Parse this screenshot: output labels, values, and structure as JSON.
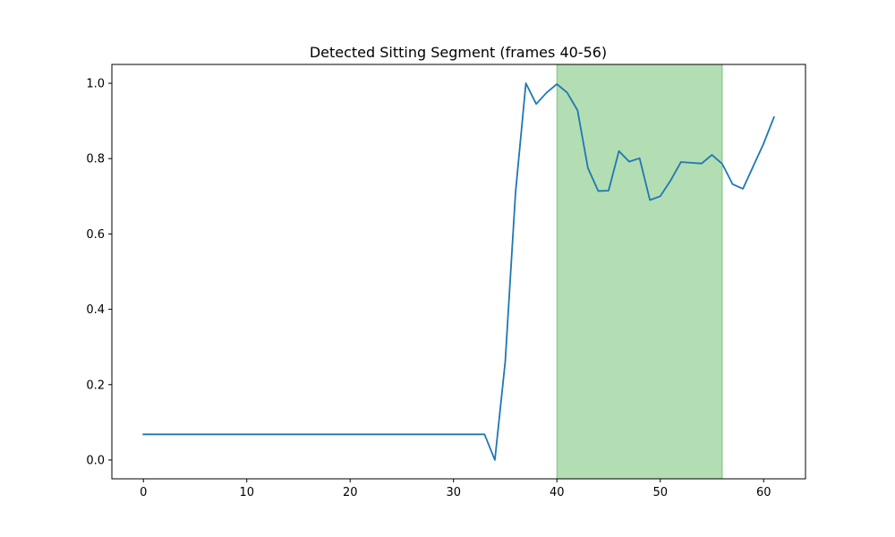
{
  "chart_data": {
    "type": "line",
    "title": "Detected Sitting Segment (frames 40-56)",
    "xlabel": "",
    "ylabel": "",
    "xlim": [
      -3.05,
      64.05
    ],
    "ylim": [
      -0.05,
      1.05
    ],
    "xticks": [
      0,
      10,
      20,
      30,
      40,
      50,
      60
    ],
    "yticks": [
      0.0,
      0.2,
      0.4,
      0.6,
      0.8,
      1.0
    ],
    "xtick_labels": [
      "0",
      "10",
      "20",
      "30",
      "40",
      "50",
      "60"
    ],
    "ytick_labels": [
      "0.0",
      "0.2",
      "0.4",
      "0.6",
      "0.8",
      "1.0"
    ],
    "grid": false,
    "line_color": "#1f77b4",
    "highlight": {
      "x_start": 40,
      "x_end": 56,
      "color": "#2ca02c",
      "opacity": 0.36
    },
    "series": [
      {
        "x": [
          0,
          1,
          2,
          3,
          4,
          5,
          6,
          7,
          8,
          9,
          10,
          11,
          12,
          13,
          14,
          15,
          16,
          17,
          18,
          19,
          20,
          21,
          22,
          23,
          24,
          25,
          26,
          27,
          28,
          29,
          30,
          31,
          32,
          33,
          34,
          35,
          36,
          37,
          38,
          39,
          40,
          41,
          42,
          43,
          44,
          45,
          46,
          47,
          48,
          49,
          50,
          51,
          52,
          53,
          54,
          55,
          56,
          57,
          58,
          59,
          60,
          61
        ],
        "values": [
          0.068,
          0.068,
          0.068,
          0.068,
          0.068,
          0.068,
          0.068,
          0.068,
          0.068,
          0.068,
          0.068,
          0.068,
          0.068,
          0.068,
          0.068,
          0.068,
          0.068,
          0.068,
          0.068,
          0.068,
          0.068,
          0.068,
          0.068,
          0.068,
          0.068,
          0.068,
          0.068,
          0.068,
          0.068,
          0.068,
          0.068,
          0.068,
          0.068,
          0.068,
          0.0,
          0.26,
          0.71,
          1.0,
          0.945,
          0.975,
          0.998,
          0.975,
          0.928,
          0.775,
          0.714,
          0.715,
          0.82,
          0.792,
          0.801,
          0.69,
          0.7,
          0.742,
          0.791,
          0.789,
          0.787,
          0.81,
          0.786,
          0.732,
          0.72,
          0.78,
          0.84,
          0.91
        ]
      }
    ]
  }
}
